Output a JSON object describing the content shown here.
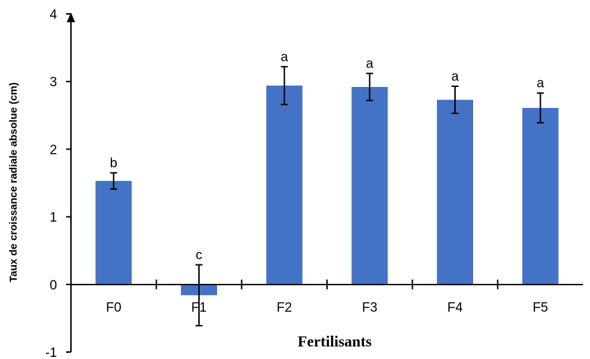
{
  "chart_data": {
    "type": "bar",
    "xlabel": "Fertilisants",
    "ylabel": "Taux de croissance radiale absolue (cm)",
    "ylim": [
      -1,
      4
    ],
    "yticks": [
      "-1",
      "0",
      "1",
      "2",
      "3",
      "4"
    ],
    "categories": [
      "F0",
      "F1",
      "F2",
      "F3",
      "F4",
      "F5"
    ],
    "values": [
      1.53,
      -0.16,
      2.94,
      2.92,
      2.73,
      2.61
    ],
    "errors": [
      0.12,
      0.45,
      0.28,
      0.2,
      0.2,
      0.22
    ],
    "significance": [
      "b",
      "c",
      "a",
      "a",
      "a",
      "a"
    ],
    "bar_color": "#4472C4",
    "grid": false
  }
}
